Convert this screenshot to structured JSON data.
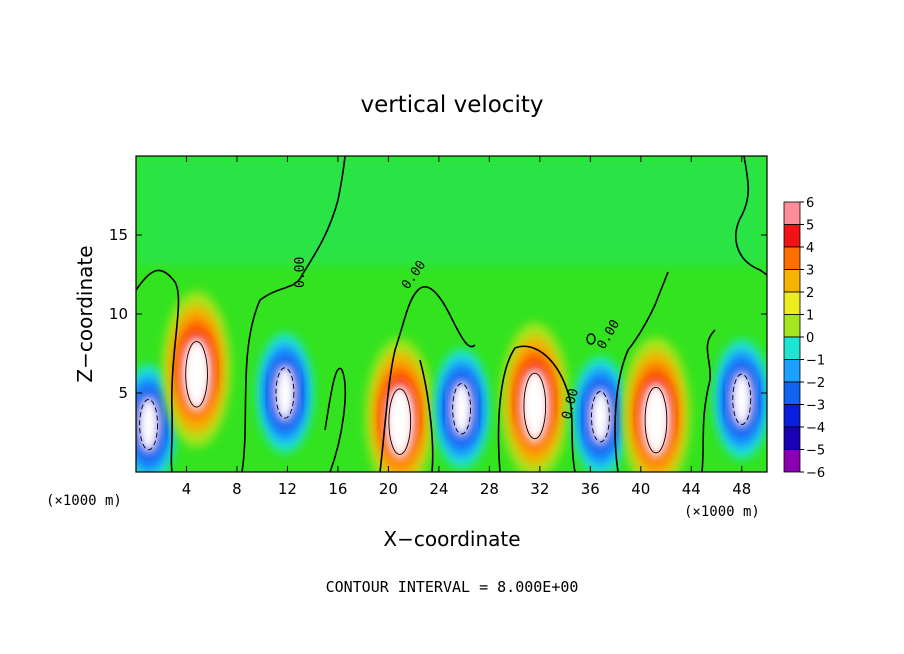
{
  "chart_data": {
    "type": "heatmap",
    "title": "vertical velocity",
    "xlabel": "X−coordinate",
    "ylabel": "Z−coordinate",
    "x_unit": "(×1000 m)",
    "z_unit": "(×1000 m)",
    "footer": "CONTOUR INTERVAL = 8.000E+00",
    "contour_label": "0.00",
    "xlim": [
      0,
      50
    ],
    "ylim": [
      0,
      20
    ],
    "xticks": [
      4,
      8,
      12,
      16,
      20,
      24,
      28,
      32,
      36,
      40,
      44,
      48
    ],
    "yticks": [
      5,
      10,
      15
    ],
    "colorbar": {
      "range": [
        -6,
        6
      ],
      "levels": [
        6,
        5,
        4,
        3,
        2,
        1,
        0,
        -1,
        -2,
        -3,
        -4,
        -5,
        -6
      ],
      "tick_labels": [
        "6",
        "5",
        "4",
        "3",
        "2",
        "1",
        "0",
        "−1",
        "−2",
        "−3",
        "−4",
        "−5",
        "−6"
      ]
    },
    "cells": [
      {
        "x": 1.0,
        "z": 3.0,
        "value": -6
      },
      {
        "x": 4.8,
        "z": 6.5,
        "value": 6
      },
      {
        "x": 11.8,
        "z": 5.0,
        "value": -6
      },
      {
        "x": 20.9,
        "z": 3.5,
        "value": 5
      },
      {
        "x": 25.8,
        "z": 4.0,
        "value": -6
      },
      {
        "x": 31.6,
        "z": 4.5,
        "value": 6
      },
      {
        "x": 36.8,
        "z": 3.5,
        "value": -6
      },
      {
        "x": 41.2,
        "z": 3.6,
        "value": 6
      },
      {
        "x": 48.0,
        "z": 4.6,
        "value": -6
      }
    ]
  }
}
